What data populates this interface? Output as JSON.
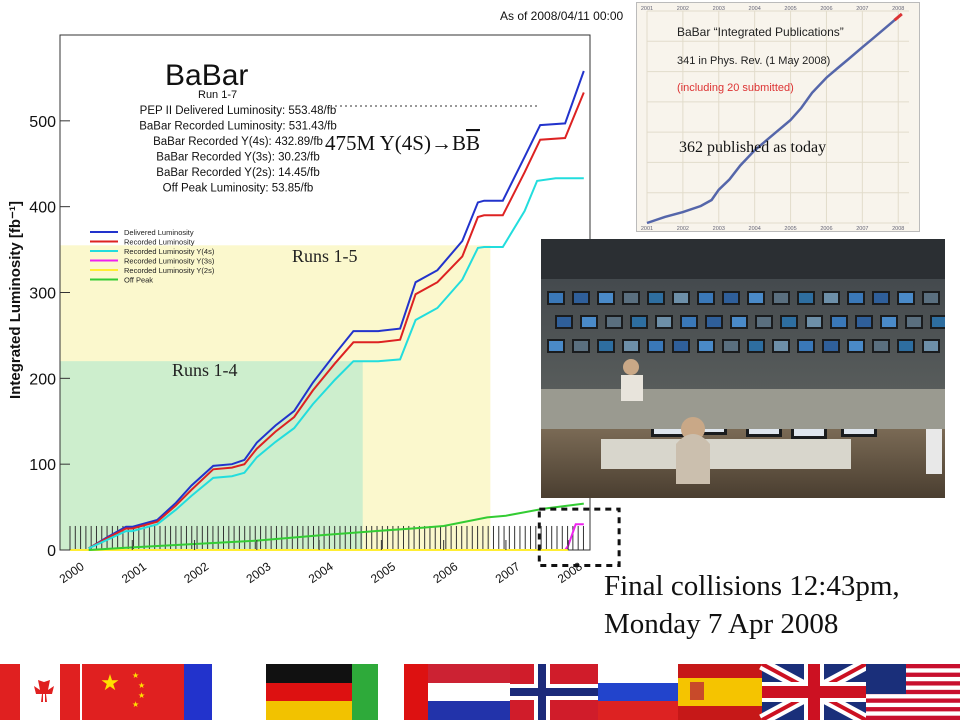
{
  "header": {
    "as_of": "As of 2008/04/11 00:00"
  },
  "chart_data": {
    "type": "line",
    "title": "BaBar",
    "subtitle": "Run 1-7",
    "ylabel": "Integrated Luminosity [fb⁻¹]",
    "xlabel": "",
    "x_tick_labels": [
      "2000",
      "2001",
      "2002",
      "2003",
      "2004",
      "2005",
      "2006",
      "2007",
      "2008"
    ],
    "y_ticks": [
      0,
      100,
      200,
      300,
      400,
      500
    ],
    "xlim": [
      1999.75,
      2008.35
    ],
    "ylim": [
      0,
      600
    ],
    "grid": false,
    "stats": [
      "PEP II Delivered Luminosity: 553.48/fb",
      "BaBar Recorded Luminosity: 531.43/fb",
      "BaBar Recorded Y(4s): 432.89/fb",
      "BaBar Recorded Y(3s): 30.23/fb",
      "BaBar Recorded Y(2s): 14.45/fb",
      "Off Peak Luminosity: 53.85/fb"
    ],
    "legend_position": "left",
    "series": [
      {
        "name": "Delivered Luminosity",
        "color": "#2233cc",
        "x": [
          2000.3,
          2000.6,
          2000.9,
          2001.0,
          2001.4,
          2001.7,
          2001.95,
          2002.3,
          2002.6,
          2002.8,
          2003.0,
          2003.3,
          2003.6,
          2003.9,
          2004.25,
          2004.55,
          2004.7,
          2004.95,
          2005.3,
          2005.55,
          2005.9,
          2006.3,
          2006.55,
          2006.65,
          2006.95,
          2007.3,
          2007.55,
          2007.95,
          2008.25
        ],
        "y": [
          2,
          15,
          27,
          27,
          35,
          55,
          75,
          98,
          100,
          105,
          125,
          145,
          162,
          195,
          228,
          255,
          255,
          255,
          258,
          312,
          326,
          360,
          405,
          407,
          407,
          458,
          495,
          497,
          558
        ]
      },
      {
        "name": "Recorded Luminosity",
        "color": "#dd2222",
        "x": [
          2000.3,
          2000.6,
          2000.9,
          2001.0,
          2001.4,
          2001.7,
          2001.95,
          2002.3,
          2002.6,
          2002.8,
          2003.0,
          2003.3,
          2003.6,
          2003.9,
          2004.25,
          2004.55,
          2004.7,
          2004.95,
          2005.3,
          2005.55,
          2005.9,
          2006.3,
          2006.55,
          2006.65,
          2006.95,
          2007.3,
          2007.55,
          2007.95,
          2008.25
        ],
        "y": [
          2,
          14,
          25,
          25,
          33,
          52,
          70,
          94,
          96,
          100,
          118,
          138,
          155,
          186,
          217,
          242,
          242,
          242,
          245,
          298,
          312,
          342,
          388,
          390,
          390,
          440,
          478,
          480,
          533
        ]
      },
      {
        "name": "Recorded Luminosity Y(4s)",
        "color": "#22dddd",
        "x": [
          2000.3,
          2000.6,
          2000.9,
          2001.0,
          2001.4,
          2001.7,
          2001.95,
          2002.3,
          2002.6,
          2002.8,
          2003.0,
          2003.3,
          2003.6,
          2003.9,
          2004.25,
          2004.55,
          2004.7,
          2004.95,
          2005.3,
          2005.55,
          2005.9,
          2006.3,
          2006.55,
          2006.65,
          2006.95,
          2007.3,
          2007.5,
          2007.8,
          2008.25
        ],
        "y": [
          2,
          12,
          22,
          22,
          30,
          47,
          63,
          84,
          86,
          90,
          108,
          126,
          142,
          170,
          198,
          220,
          220,
          220,
          222,
          268,
          282,
          315,
          352,
          353,
          353,
          395,
          430,
          433,
          433
        ]
      },
      {
        "name": "Recorded Luminosity Y(3s)",
        "color": "#ee22ee",
        "x": [
          2000.0,
          2007.95,
          2008.0,
          2008.12,
          2008.25
        ],
        "y": [
          0,
          0,
          5,
          30,
          30
        ]
      },
      {
        "name": "Recorded Luminosity Y(2s)",
        "color": "#ffee33",
        "x": [
          2000.0,
          2008.0
        ],
        "y": [
          0,
          0
        ]
      },
      {
        "name": "Off Peak",
        "color": "#33cc33",
        "x": [
          2000.3,
          2001.0,
          2002.0,
          2003.0,
          2004.0,
          2004.9,
          2005.5,
          2006.0,
          2006.7,
          2007.0,
          2007.6,
          2008.25
        ],
        "y": [
          0,
          3,
          7,
          11,
          17,
          22,
          25,
          28,
          38,
          40,
          48,
          54
        ]
      }
    ],
    "run_regions": [
      {
        "label": "Runs 1-4",
        "x_end": 2004.7,
        "y_top": 220,
        "color": "#cdeecd"
      },
      {
        "label": "Runs 1-5",
        "x_end": 2006.75,
        "y_top": 355,
        "color": "#fbf8cd"
      }
    ],
    "annotations": [
      {
        "text": "475M Y(4S)→B",
        "overbar": "B"
      }
    ],
    "highlight_box": {
      "x": [
        2007.6,
        2008.4
      ],
      "y": [
        -18,
        50
      ]
    }
  },
  "publications": {
    "title": "BaBar “Integrated Publications”",
    "count_line": "341 in Phys. Rev. (1 May 2008)",
    "submitted_line": "(including 20 submitted)",
    "today_label": "362 published as today",
    "year_labels": [
      "2001",
      "2002",
      "2003",
      "2004",
      "2005",
      "2006",
      "2007",
      "2008"
    ],
    "series": {
      "x": [
        2001.0,
        2001.5,
        2002.0,
        2002.5,
        2002.8,
        2003.0,
        2003.3,
        2003.6,
        2004.0,
        2004.3,
        2004.6,
        2005.0,
        2005.3,
        2005.6,
        2006.0,
        2006.3,
        2006.6,
        2007.0,
        2007.3,
        2007.6,
        2007.9,
        2008.1
      ],
      "y": [
        0,
        10,
        18,
        28,
        38,
        55,
        72,
        95,
        120,
        135,
        150,
        170,
        190,
        215,
        240,
        255,
        270,
        290,
        305,
        320,
        335,
        345
      ]
    },
    "ylim": [
      0,
      350
    ],
    "xlim": [
      2001.0,
      2008.3
    ],
    "line_color": "#5566aa",
    "recent_color": "#dd3333"
  },
  "photo": {
    "description_icon": "control-room-photo"
  },
  "caption": {
    "line1": "Final collisions 12:43pm,",
    "line2": "Monday 7 Apr 2008"
  },
  "flags": [
    "canada",
    "china",
    "france",
    "italy",
    "germany",
    "ireland",
    "austria",
    "netherlands",
    "norway",
    "russia",
    "spain",
    "united-kingdom",
    "united-states"
  ]
}
